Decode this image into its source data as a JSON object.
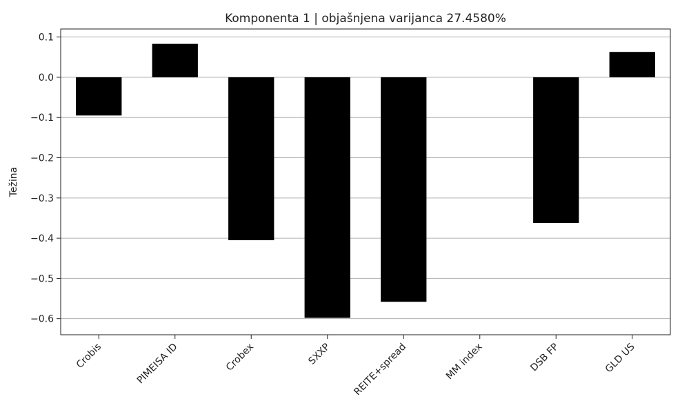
{
  "chart_data": {
    "type": "bar",
    "title": "Komponenta 1 | objašnjena varijanca 27.4580%",
    "xlabel": "",
    "ylabel": "Težina",
    "categories": [
      "Crobis",
      "PIMEISA ID",
      "Crobex",
      "SXXP",
      "REITE+spread",
      "MM index",
      "DSB FP",
      "GLD US"
    ],
    "values": [
      -0.095,
      0.083,
      -0.405,
      -0.598,
      -0.558,
      0.0,
      -0.362,
      0.063
    ],
    "ylim": [
      -0.64,
      0.12
    ],
    "yticks": [
      0.1,
      0.0,
      -0.1,
      -0.2,
      -0.3,
      -0.4,
      -0.5,
      -0.6
    ],
    "ytick_labels": [
      "0.1",
      "0.0",
      "−0.1",
      "−0.2",
      "−0.3",
      "−0.4",
      "−0.5",
      "−0.6"
    ],
    "grid": "y",
    "bar_color": "#000000",
    "grid_color": "#b0b0b0"
  }
}
